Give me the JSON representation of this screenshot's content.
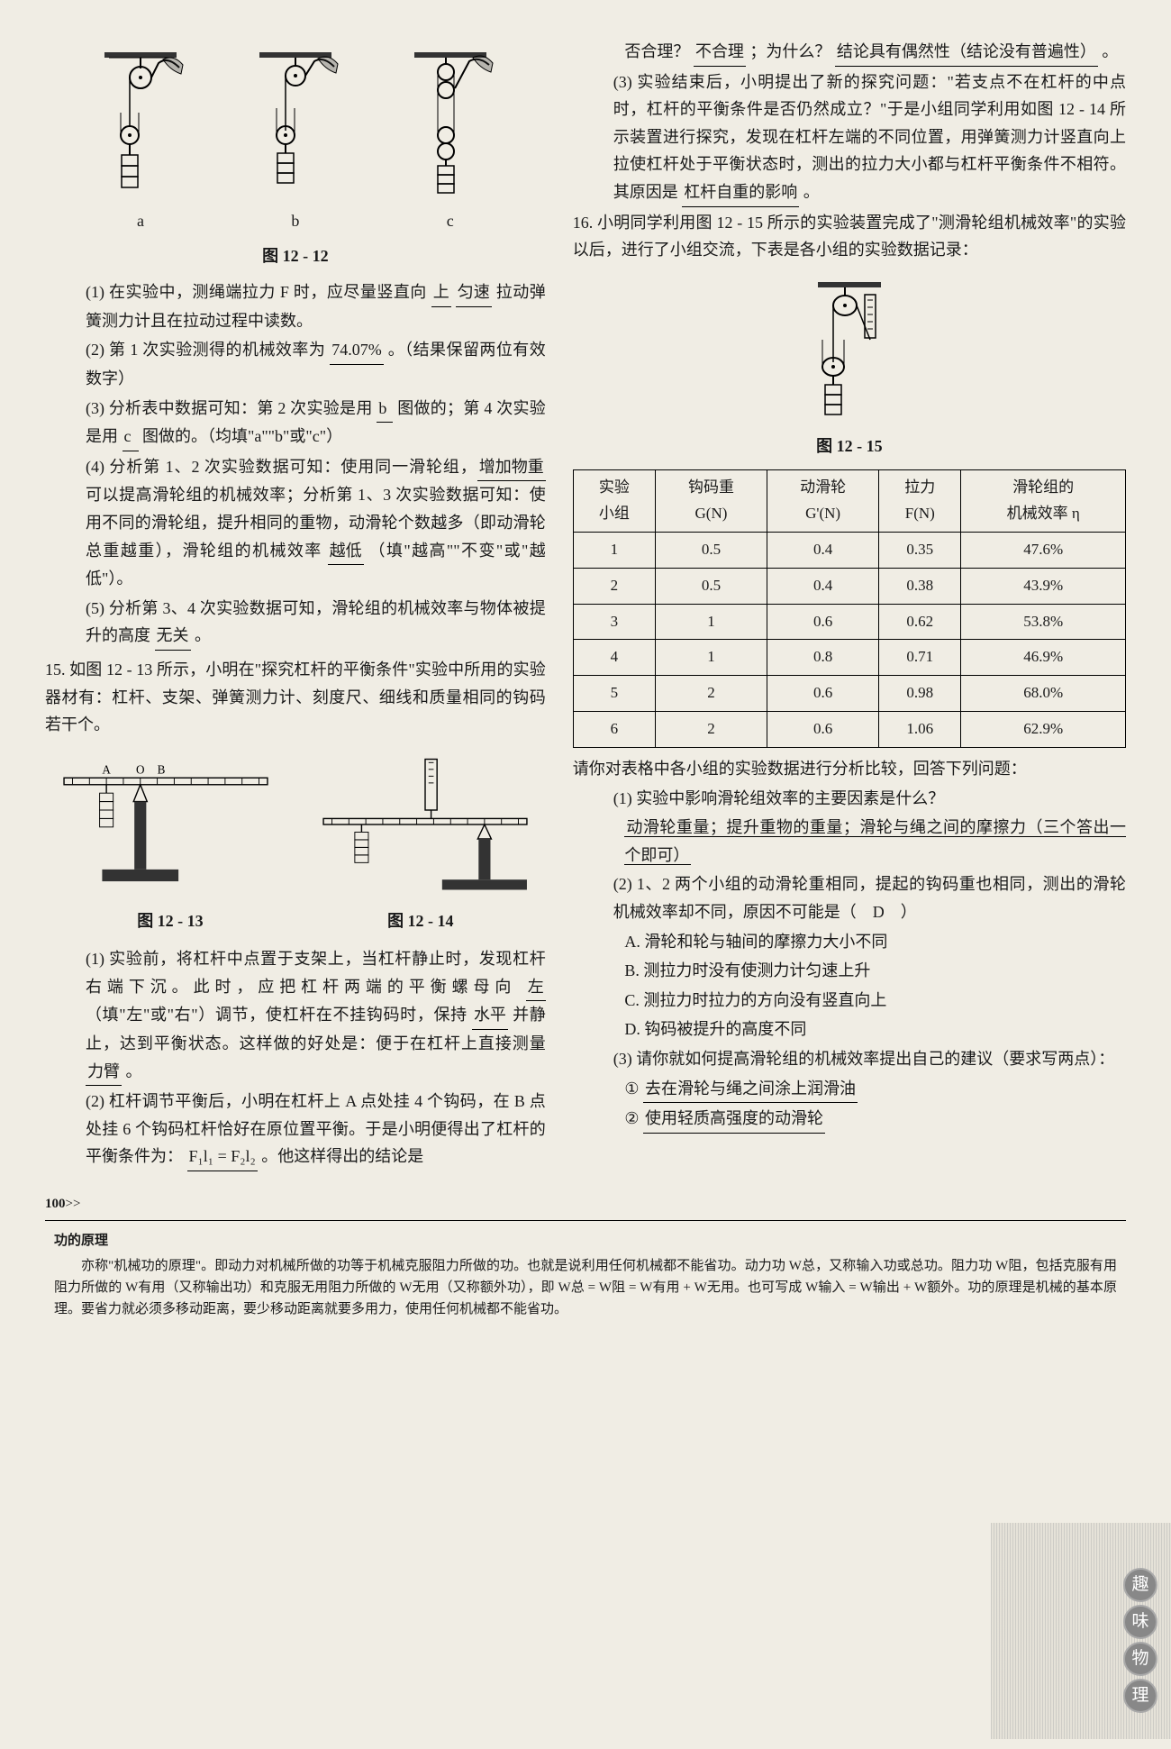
{
  "left": {
    "fig12_12": "图 12 - 12",
    "labels_abc": [
      "a",
      "b",
      "c"
    ],
    "q1": "(1) 在实验中，测绳端拉力 F 时，应尽量竖直向",
    "q1a": "上",
    "q1b": "匀速",
    "q1c": "拉动弹簧测力计且在拉动过程中读数。",
    "q2": "(2) 第 1 次实验测得的机械效率为",
    "q2a": "74.07%",
    "q2b": "。（结果保留两位有效数字）",
    "q3": "(3) 分析表中数据可知：第 2 次实验是用",
    "q3a": "b",
    "q3b": "图做的；第 4 次实验是用",
    "q3c": "c",
    "q3d": "图做的。（均填\"a\"\"b\"或\"c\"）",
    "q4": "(4) 分析第 1、2 次实验数据可知：使用同一滑轮",
    "q4a": "组，",
    "q4b": "增加物重",
    "q4c": "可以提高滑轮组的机械效率；分析第 1、3 次实验数据可知：使用不同的滑轮组，提升相同的重物，动滑轮个数越多（即动滑轮总重越重），滑轮组的机械效率",
    "q4d": "越低",
    "q4e": "（填\"越高\"\"不变\"或\"越低\"）。",
    "q5": "(5) 分析第 3、4 次实验数据可知，滑轮组的机械效率与物体被提升的高度",
    "q5a": "无关",
    "q5b": "。",
    "q15_stem": "15. 如图 12 - 13 所示，小明在\"探究杠杆的平衡条件\"实验中所用的实验器材有：杠杆、支架、弹簧测力计、刻度尺、细线和质量相同的钩码若干个。",
    "fig12_13": "图 12 - 13",
    "fig12_14": "图 12 - 14",
    "q15_1a": "(1) 实验前，将杠杆中点置于支架上，当杠杆静止时，发现杠杆右端下沉。此时，应把杠杆两端的平衡螺母向",
    "q15_1b": "左",
    "q15_1c": "（填\"左\"或\"右\"）调节，使杠杆在不挂钩码时，保持",
    "q15_1d": "水平",
    "q15_1e": "并静止，达到平衡状态。这样做的好处是：便于在杠杆上直接测量",
    "q15_1f": "力臂",
    "q15_1g": "。",
    "q15_2a": "(2) 杠杆调节平衡后，小明在杠杆上 A 点处挂 4 个钩码，在 B 点处挂 6 个钩码杠杆恰好在原位置平衡。于是小明便得出了杠杆的平衡条件为：",
    "q15_2b": "F₁l₁ = F₂l₂",
    "q15_2c": "。他这样得出的结论是"
  },
  "right": {
    "cont1": "否合理？",
    "cont1a": "不合理",
    "cont1b": "；为什么？",
    "cont1c": "结论具有偶然性（结论没有普遍性）",
    "cont1d": "。",
    "q15_3a": "(3) 实验结束后，小明提出了新的探究问题：\"若支点不在杠杆的中点时，杠杆的平衡条件是否仍然成立？\"于是小组同学利用如图 12 - 14 所示装置进行探究，发现在杠杆左端的不同位置，用弹簧测力计竖直向上拉使杠杆处于平衡状态时，测出的拉力大小都与杠杆平衡条件不相符。其原因是",
    "q15_3b": "杠杆自重的影响",
    "q15_3c": "。",
    "q16_stem": "16. 小明同学利用图 12 - 15 所示的实验装置完成了\"测滑轮组机械效率\"的实验以后，进行了小组交流，下表是各小组的实验数据记录：",
    "fig12_15": "图 12 - 15",
    "table": {
      "headers": [
        "实验\n小组",
        "钩码重\nG(N)",
        "动滑轮\nG'(N)",
        "拉力\nF(N)",
        "滑轮组的\n机械效率 η"
      ],
      "rows": [
        [
          "1",
          "0.5",
          "0.4",
          "0.35",
          "47.6%"
        ],
        [
          "2",
          "0.5",
          "0.4",
          "0.38",
          "43.9%"
        ],
        [
          "3",
          "1",
          "0.6",
          "0.62",
          "53.8%"
        ],
        [
          "4",
          "1",
          "0.8",
          "0.71",
          "46.9%"
        ],
        [
          "5",
          "2",
          "0.6",
          "0.98",
          "68.0%"
        ],
        [
          "6",
          "2",
          "0.6",
          "1.06",
          "62.9%"
        ]
      ]
    },
    "q16_intro": "请你对表格中各小组的实验数据进行分析比较，回答下列问题：",
    "q16_1a": "(1) 实验中影响滑轮组效率的主要因素是什么？",
    "q16_1b": "动滑轮重量；提升重物的重量；滑轮与绳之间的摩擦力（三个答出一个即可）",
    "q16_2a": "(2) 1、2 两个小组的动滑轮重相同，提起的钩码重也相同，测出的滑轮机械效率却不同，原因不可能是（　D　）",
    "q16_2A": "A. 滑轮和轮与轴间的摩擦力大小不同",
    "q16_2B": "B. 测拉力时没有使测力计匀速上升",
    "q16_2C": "C. 测拉力时拉力的方向没有竖直向上",
    "q16_2D": "D. 钩码被提升的高度不同",
    "q16_3a": "(3) 请你就如何提高滑轮组的机械效率提出自己的建议（要求写两点）：",
    "q16_3b1": "①",
    "q16_3b2": "去在滑轮与绳之间涂上润滑油",
    "q16_3c1": "②",
    "q16_3c2": "使用轻质高强度的动滑轮"
  },
  "page_num": "100",
  "footnote": {
    "title": "功的原理",
    "body": "亦称\"机械功的原理\"。即动力对机械所做的功等于机械克服阻力所做的功。也就是说利用任何机械都不能省功。动力功 W总，又称输入功或总功。阻力功 W阻，包括克服有用阻力所做的 W有用（又称输出功）和克服无用阻力所做的 W无用（又称额外功），即 W总 = W阻 = W有用 + W无用。也可写成 W输入 = W输出 + W额外。功的原理是机械的基本原理。要省力就必须多移动距离，要少移动距离就要多用力，使用任何机械都不能省功。"
  },
  "badges": [
    "趣",
    "味",
    "物",
    "理"
  ]
}
